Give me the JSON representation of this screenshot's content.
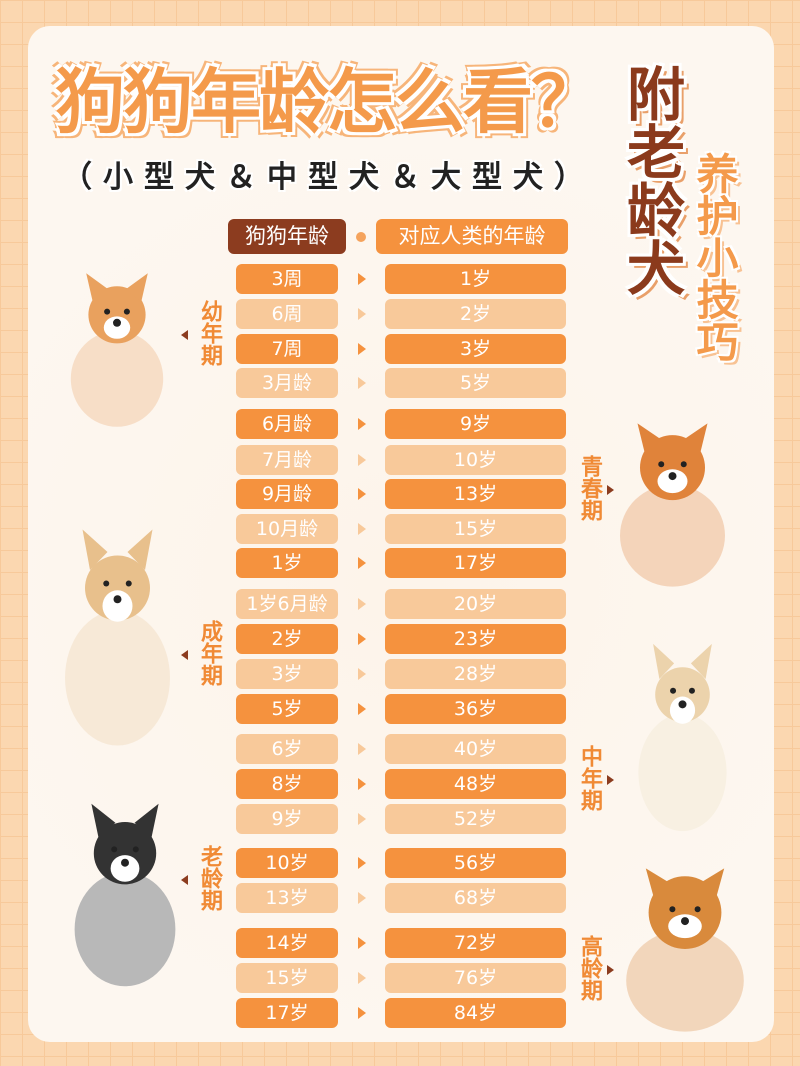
{
  "title": "狗狗年龄怎么看？",
  "subtitle": "（小型犬＆中型犬＆大型犬）",
  "side_title": "附老龄犬",
  "side_subtitle": "养护小技巧",
  "header": {
    "dog_age": "狗狗年龄",
    "human_age": "对应人类的年龄"
  },
  "colors": {
    "dark_row": "#f5923e",
    "light_row": "#f8c99a",
    "header_dark": "#8c3c1f",
    "accent": "#f49a4b"
  },
  "stages": [
    {
      "label": "幼年期",
      "side": "left",
      "dog": "corgi-puppy"
    },
    {
      "label": "青春期",
      "side": "right",
      "dog": "corgi"
    },
    {
      "label": "成年期",
      "side": "left",
      "dog": "golden-retriever-young"
    },
    {
      "label": "中年期",
      "side": "right",
      "dog": "golden-retriever"
    },
    {
      "label": "老龄期",
      "side": "left",
      "dog": "border-collie"
    },
    {
      "label": "高龄期",
      "side": "right",
      "dog": "golden-retriever-sitting"
    }
  ],
  "rows": [
    {
      "dog": "3周",
      "human": "1岁",
      "tone": "dark"
    },
    {
      "dog": "6周",
      "human": "2岁",
      "tone": "light"
    },
    {
      "dog": "7周",
      "human": "3岁",
      "tone": "dark"
    },
    {
      "dog": "3月龄",
      "human": "5岁",
      "tone": "light"
    },
    {
      "dog": "6月龄",
      "human": "9岁",
      "tone": "dark"
    },
    {
      "dog": "7月龄",
      "human": "10岁",
      "tone": "light"
    },
    {
      "dog": "9月龄",
      "human": "13岁",
      "tone": "dark"
    },
    {
      "dog": "10月龄",
      "human": "15岁",
      "tone": "light"
    },
    {
      "dog": "1岁",
      "human": "17岁",
      "tone": "dark"
    },
    {
      "dog": "1岁6月龄",
      "human": "20岁",
      "tone": "light"
    },
    {
      "dog": "2岁",
      "human": "23岁",
      "tone": "dark"
    },
    {
      "dog": "3岁",
      "human": "28岁",
      "tone": "light"
    },
    {
      "dog": "5岁",
      "human": "36岁",
      "tone": "dark"
    },
    {
      "dog": "6岁",
      "human": "40岁",
      "tone": "light"
    },
    {
      "dog": "8岁",
      "human": "48岁",
      "tone": "dark"
    },
    {
      "dog": "9岁",
      "human": "52岁",
      "tone": "light"
    },
    {
      "dog": "10岁",
      "human": "56岁",
      "tone": "dark"
    },
    {
      "dog": "13岁",
      "human": "68岁",
      "tone": "light"
    },
    {
      "dog": "14岁",
      "human": "72岁",
      "tone": "dark"
    },
    {
      "dog": "15岁",
      "human": "76岁",
      "tone": "light"
    },
    {
      "dog": "17岁",
      "human": "84岁",
      "tone": "dark"
    }
  ]
}
